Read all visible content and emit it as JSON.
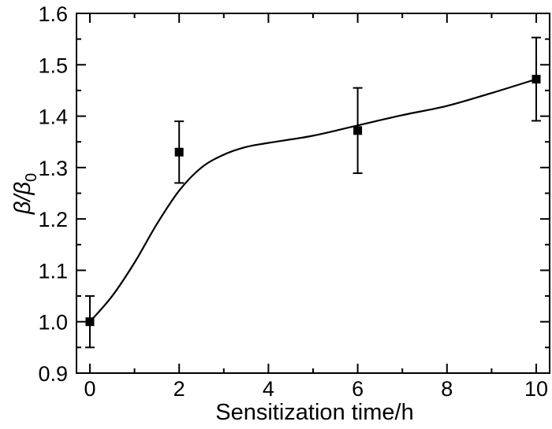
{
  "chart_data": {
    "type": "scatter",
    "title": "",
    "xlabel": "Sensitization time/h",
    "ylabel": {
      "symbol": "β/β",
      "subscript": "0"
    },
    "xlim": [
      -0.3,
      10.3
    ],
    "ylim": [
      0.9,
      1.6
    ],
    "x_ticks": [
      "0",
      "2",
      "4",
      "6",
      "8",
      "10"
    ],
    "y_ticks": [
      "0.9",
      "1.0",
      "1.1",
      "1.2",
      "1.3",
      "1.4",
      "1.5",
      "1.6"
    ],
    "grid": false,
    "legend": "none",
    "marker": "square",
    "color": "#000000",
    "series": [
      {
        "x": [
          0,
          2,
          6,
          10
        ],
        "y": [
          1.0,
          1.33,
          1.372,
          1.472
        ],
        "yerr": [
          0.05,
          0.06,
          0.083,
          0.081
        ]
      }
    ],
    "fit_curve": {
      "x": [
        0,
        0.5,
        1,
        1.5,
        2,
        2.5,
        3,
        3.5,
        4,
        5,
        6,
        7,
        8,
        9,
        10
      ],
      "y": [
        1.0,
        1.05,
        1.115,
        1.19,
        1.255,
        1.3,
        1.325,
        1.34,
        1.348,
        1.362,
        1.382,
        1.402,
        1.42,
        1.445,
        1.472
      ]
    }
  }
}
